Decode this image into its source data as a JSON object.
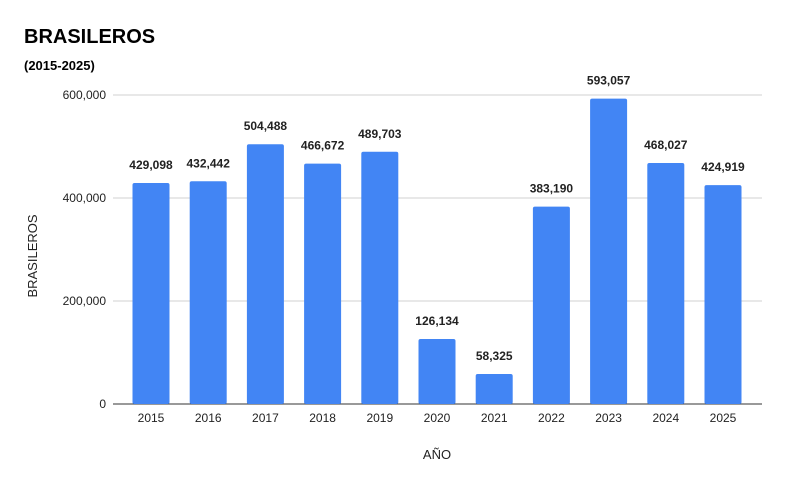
{
  "chart_data": {
    "type": "bar",
    "title": "BRASILEROS",
    "subtitle": "(2015-2025)",
    "xlabel": "AÑO",
    "ylabel": "BRASILEROS",
    "categories": [
      "2015",
      "2016",
      "2017",
      "2018",
      "2019",
      "2020",
      "2021",
      "2022",
      "2023",
      "2024",
      "2025"
    ],
    "values": [
      429098,
      432442,
      504488,
      466672,
      489703,
      126134,
      58325,
      383190,
      593057,
      468027,
      424919
    ],
    "data_labels": [
      "429,098",
      "432,442",
      "504,488",
      "466,672",
      "489,703",
      "126,134",
      "58,325",
      "383,190",
      "593,057",
      "468,027",
      "424,919"
    ],
    "ylim": [
      0,
      600000
    ],
    "yticks": [
      0,
      200000,
      400000,
      600000
    ],
    "ytick_labels": [
      "0",
      "200,000",
      "400,000",
      "600,000"
    ],
    "grid": true,
    "legend": "none",
    "bar_color": "#4285f4"
  }
}
